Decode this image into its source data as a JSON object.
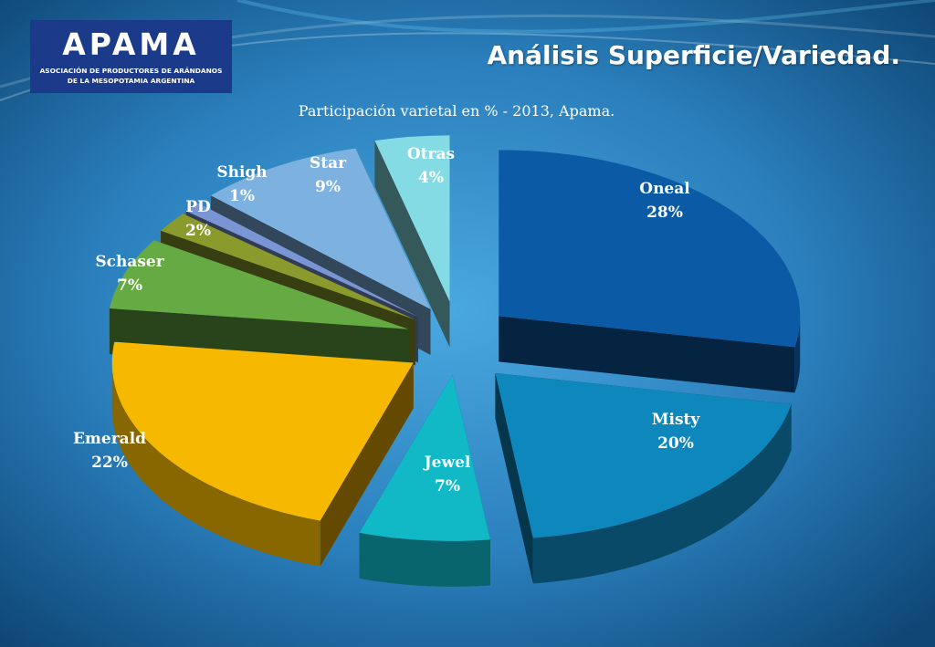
{
  "header": {
    "logo_text": "APAMA",
    "logo_subtitle_1": "ASOCIACIÓN DE PRODUCTORES DE ARÁNDANOS",
    "logo_subtitle_2": "DE LA MESOPOTAMIA ARGENTINA",
    "title": "Análisis Superficie/Variedad."
  },
  "colors": {
    "background_dark": "#0f4a78",
    "background_light": "#3b9cd6",
    "logo_bg": "#1c3a8a",
    "label_text": "#ffffff"
  },
  "chart_data": {
    "type": "pie",
    "style": "3d-exploded",
    "title": "Participación varietal en % - 2013, Apama.",
    "slices": [
      {
        "label": "Oneal",
        "value": 28,
        "value_label": "28%",
        "color": "#0b5aa5"
      },
      {
        "label": "Misty",
        "value": 20,
        "value_label": "20%",
        "color": "#0e87bd"
      },
      {
        "label": "Jewel",
        "value": 7,
        "value_label": "7%",
        "color": "#11b8c6"
      },
      {
        "label": "Emerald",
        "value": 22,
        "value_label": "22%",
        "color": "#f7b900"
      },
      {
        "label": "Schaser",
        "value": 7,
        "value_label": "7%",
        "color": "#66aa44"
      },
      {
        "label": "PD",
        "value": 2,
        "value_label": "2%",
        "color": "#8a9a2c"
      },
      {
        "label": "Shigh",
        "value": 1,
        "value_label": "1%",
        "color": "#7a95d3"
      },
      {
        "label": "Star",
        "value": 9,
        "value_label": "9%",
        "color": "#7db2e0"
      },
      {
        "label": "Otras",
        "value": 4,
        "value_label": "4%",
        "color": "#84dbe4"
      }
    ]
  }
}
